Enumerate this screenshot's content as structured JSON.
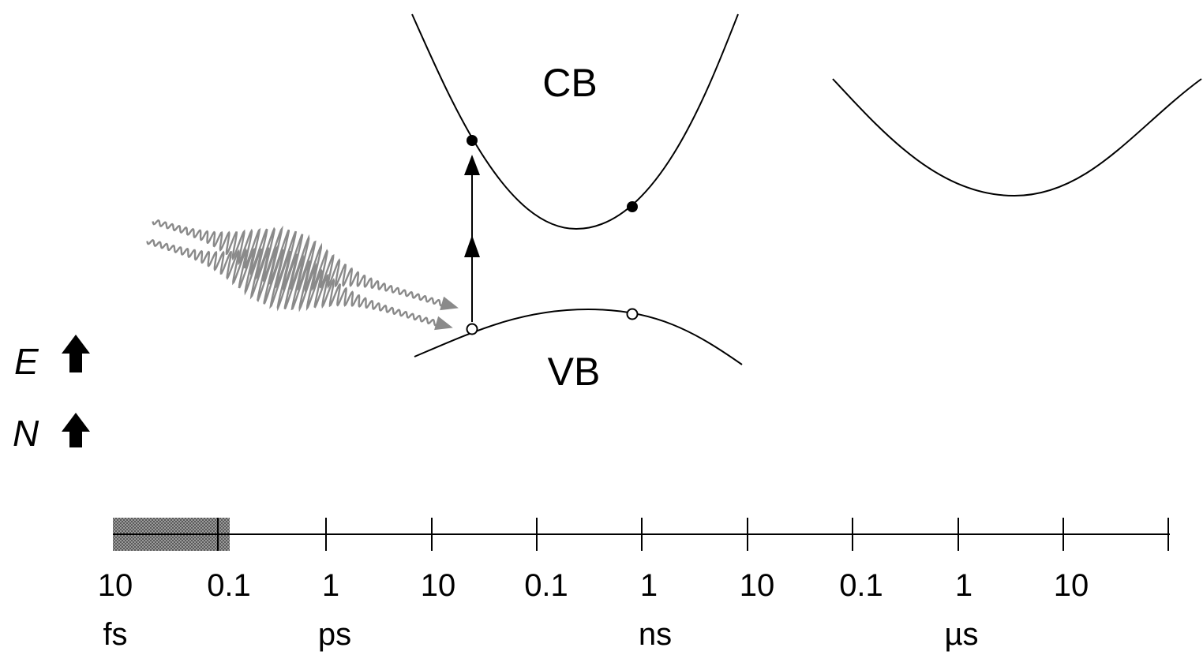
{
  "bands": {
    "conduction_label": "CB",
    "valence_label": "VB"
  },
  "axis_variables": {
    "energy": "E",
    "density": "N"
  },
  "timeline": {
    "tick_labels": [
      "10",
      "0.1",
      "1",
      "10",
      "0.1",
      "1",
      "10",
      "0.1",
      "1",
      "10"
    ],
    "unit_labels": [
      "fs",
      "ps",
      "ns",
      "µs"
    ]
  },
  "icons": {
    "axis_arrow": "thick-up-arrow-icon",
    "photon": "wavy-photon-pulse-icon",
    "electron": "filled-circle",
    "hole": "open-circle"
  },
  "colors": {
    "line": "#000000",
    "pulse": "#8a8a8a",
    "shaded_interval": "#6e6e6e"
  }
}
